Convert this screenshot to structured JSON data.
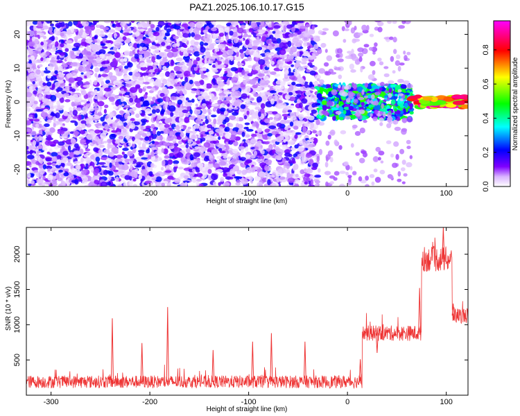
{
  "title": "PAZ1.2025.106.10.17.G15",
  "chart_data": [
    {
      "type": "heatmap",
      "xlabel": "Height of straight line (km)",
      "ylabel": "Frequency (Hz)",
      "xlim": [
        -325,
        122
      ],
      "ylim": [
        -25,
        24
      ],
      "xticks": [
        -300,
        -200,
        -100,
        0,
        100
      ],
      "yticks": [
        -20,
        -10,
        0,
        10,
        20
      ],
      "colorbar": {
        "label": "Normalized spectral amplitude",
        "range": [
          0,
          0.97
        ],
        "ticks": [
          0.0,
          0.2,
          0.4,
          0.6,
          0.8
        ],
        "colormap": [
          "#ffffff",
          "#7f00ff",
          "#0000ff",
          "#00ffff",
          "#00ff00",
          "#ffff00",
          "#ff0000",
          "#ff00ff"
        ]
      },
      "regions": [
        {
          "x_from": -325,
          "x_to": -30,
          "freq_from": -25,
          "freq_to": 24,
          "description": "broadband scattered noise",
          "amplitude": 0.15
        },
        {
          "x_from": -30,
          "x_to": 65,
          "freq_from": -5,
          "freq_to": 5,
          "description": "signal band emerging near 0 Hz",
          "amplitude": 0.35
        },
        {
          "x_from": 65,
          "x_to": 122,
          "freq_from": -1.5,
          "freq_to": 1.5,
          "description": "strong narrow band at 0 Hz",
          "amplitude": 0.9
        }
      ]
    },
    {
      "type": "line",
      "xlabel": "Height of straight line (km)",
      "ylabel": "SNR (10 * v/v)",
      "xlim": [
        -325,
        122
      ],
      "ylim": [
        0,
        2380
      ],
      "xticks": [
        -300,
        -200,
        -100,
        0,
        100
      ],
      "yticks": [
        500,
        1000,
        1500,
        2000
      ],
      "color": "#ee3333",
      "segments": [
        {
          "x_from": -325,
          "x_to": 15,
          "mean": 190,
          "noise": 90
        },
        {
          "x_from": 15,
          "x_to": 75,
          "mean": 880,
          "noise": 110
        },
        {
          "x_from": 75,
          "x_to": 106,
          "mean": 1930,
          "noise": 180
        },
        {
          "x_from": 106,
          "x_to": 122,
          "mean": 1130,
          "noise": 110
        }
      ],
      "spikes": [
        {
          "x": -238,
          "y": 1090
        },
        {
          "x": -208,
          "y": 740
        },
        {
          "x": -182,
          "y": 1250
        },
        {
          "x": -136,
          "y": 640
        },
        {
          "x": -96,
          "y": 760
        },
        {
          "x": -77,
          "y": 880
        },
        {
          "x": -43,
          "y": 760
        },
        {
          "x": 13,
          "y": 510
        },
        {
          "x": 30,
          "y": 600
        },
        {
          "x": 73,
          "y": 1520
        },
        {
          "x": 97,
          "y": 2380
        },
        {
          "x": 107,
          "y": 1300
        }
      ]
    }
  ]
}
